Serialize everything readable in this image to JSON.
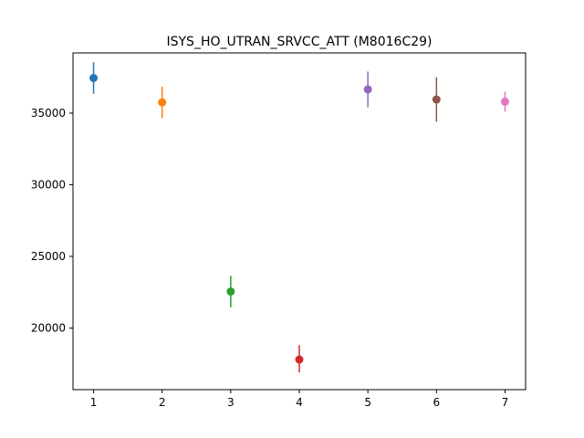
{
  "chart_data": {
    "type": "scatter",
    "title": "ISYS_HO_UTRAN_SRVCC_ATT (M8016C29)",
    "xlabel": "",
    "ylabel": "",
    "x_ticks": [
      1,
      2,
      3,
      4,
      5,
      6,
      7
    ],
    "y_ticks": [
      20000,
      25000,
      30000,
      35000
    ],
    "xlim": [
      0.7,
      7.3
    ],
    "ylim": [
      15700,
      39200
    ],
    "grid": false,
    "points": [
      {
        "x": 1,
        "y": 37450,
        "err_low": 36350,
        "err_high": 38550,
        "color": "#1f77b4"
      },
      {
        "x": 2,
        "y": 35750,
        "err_low": 34650,
        "err_high": 36850,
        "color": "#ff7f0e"
      },
      {
        "x": 3,
        "y": 22550,
        "err_low": 21450,
        "err_high": 23650,
        "color": "#2ca02c"
      },
      {
        "x": 4,
        "y": 17800,
        "err_low": 16900,
        "err_high": 18800,
        "color": "#d62728"
      },
      {
        "x": 5,
        "y": 36650,
        "err_low": 35400,
        "err_high": 37900,
        "color": "#9467bd"
      },
      {
        "x": 6,
        "y": 35950,
        "err_low": 34400,
        "err_high": 37500,
        "color": "#8c564b"
      },
      {
        "x": 7,
        "y": 35800,
        "err_low": 35100,
        "err_high": 36500,
        "color": "#e377c2"
      }
    ]
  }
}
